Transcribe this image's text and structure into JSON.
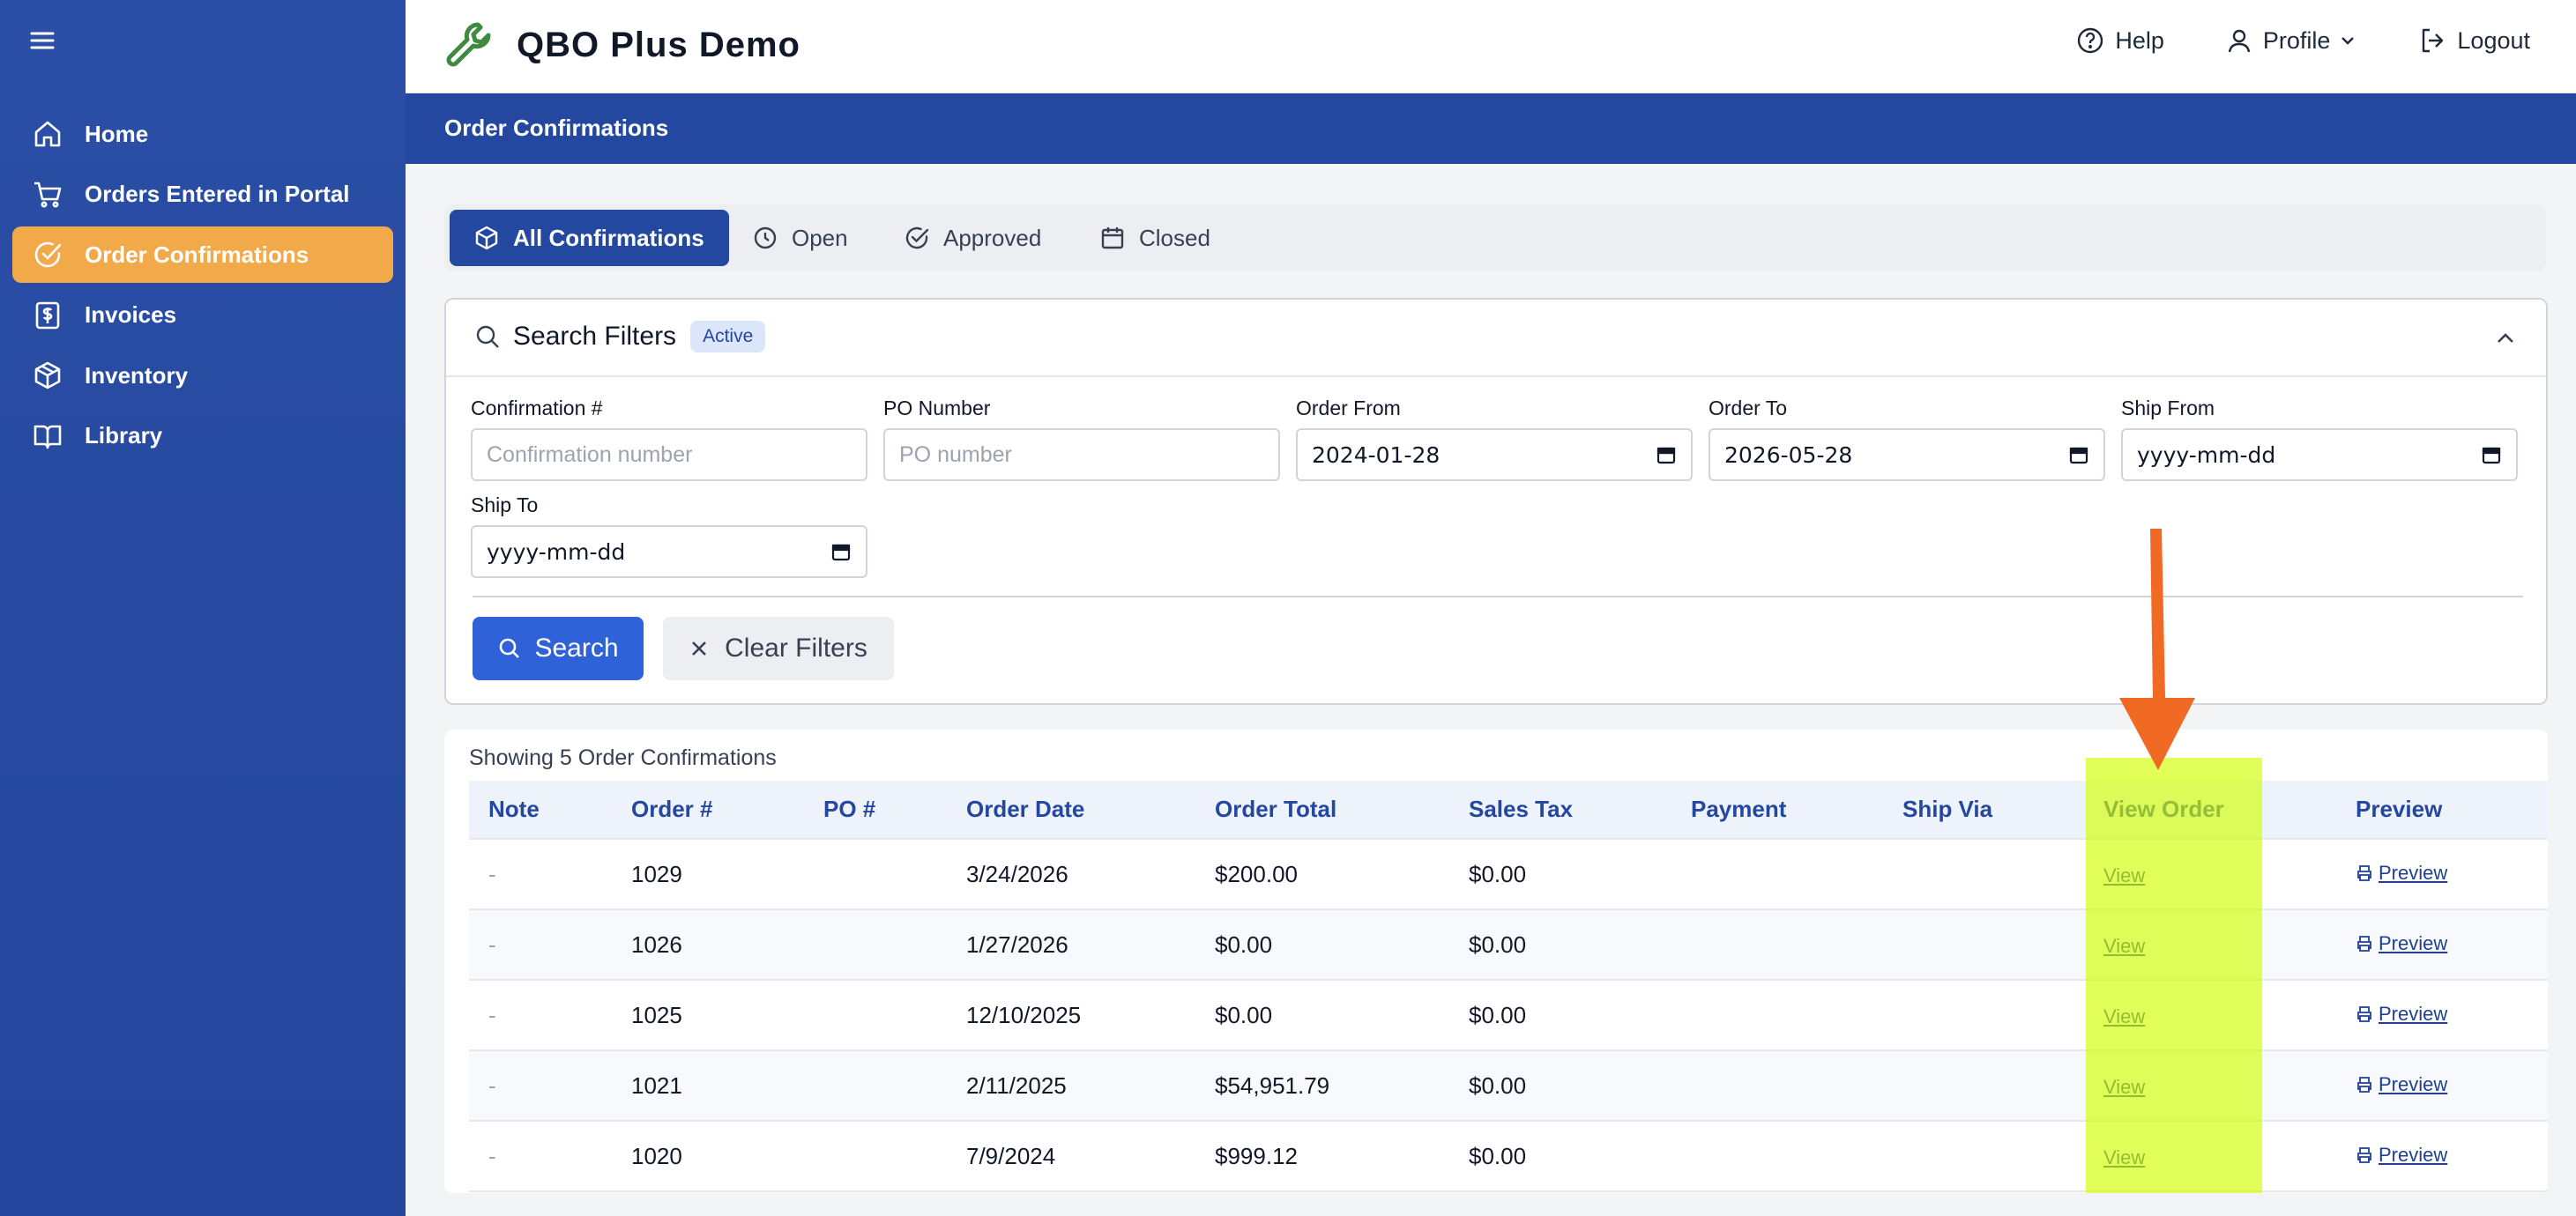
{
  "app": {
    "title": "QBO Plus Demo"
  },
  "sidebar": {
    "items": [
      {
        "label": "Home",
        "icon": "home-icon"
      },
      {
        "label": "Orders Entered in Portal",
        "icon": "cart-icon"
      },
      {
        "label": "Order Confirmations",
        "icon": "check-circle-icon",
        "active": true
      },
      {
        "label": "Invoices",
        "icon": "dollar-doc-icon"
      },
      {
        "label": "Inventory",
        "icon": "box-icon"
      },
      {
        "label": "Library",
        "icon": "book-icon"
      }
    ]
  },
  "topbar": {
    "help": "Help",
    "profile": "Profile",
    "logout": "Logout"
  },
  "page": {
    "title": "Order Confirmations"
  },
  "tabs": [
    {
      "label": "All Confirmations",
      "active": true
    },
    {
      "label": "Open"
    },
    {
      "label": "Approved"
    },
    {
      "label": "Closed"
    }
  ],
  "filters": {
    "title": "Search Filters",
    "badge": "Active",
    "fields": {
      "confirmation": {
        "label": "Confirmation #",
        "placeholder": "Confirmation number"
      },
      "po": {
        "label": "PO Number",
        "placeholder": "PO number"
      },
      "order_from": {
        "label": "Order From",
        "value": "2024-01-28"
      },
      "order_to": {
        "label": "Order To",
        "value": "2026-05-28"
      },
      "ship_from": {
        "label": "Ship From",
        "value": "yyyy-mm-dd"
      },
      "ship_to": {
        "label": "Ship To",
        "value": "yyyy-mm-dd"
      }
    },
    "search_label": "Search",
    "clear_label": "Clear Filters"
  },
  "results": {
    "count_text": "Showing 5 Order Confirmations",
    "columns": [
      "Note",
      "Order #",
      "PO #",
      "Order Date",
      "Order Total",
      "Sales Tax",
      "Payment",
      "Ship Via",
      "View Order",
      "Preview"
    ],
    "rows": [
      {
        "note": "-",
        "order": "1029",
        "po": "",
        "date": "3/24/2026",
        "total": "$200.00",
        "tax": "$0.00",
        "payment": "",
        "ship_via": "",
        "view": "View",
        "preview": "Preview"
      },
      {
        "note": "-",
        "order": "1026",
        "po": "",
        "date": "1/27/2026",
        "total": "$0.00",
        "tax": "$0.00",
        "payment": "",
        "ship_via": "",
        "view": "View",
        "preview": "Preview"
      },
      {
        "note": "-",
        "order": "1025",
        "po": "",
        "date": "12/10/2025",
        "total": "$0.00",
        "tax": "$0.00",
        "payment": "",
        "ship_via": "",
        "view": "View",
        "preview": "Preview"
      },
      {
        "note": "-",
        "order": "1021",
        "po": "",
        "date": "2/11/2025",
        "total": "$54,951.79",
        "tax": "$0.00",
        "payment": "",
        "ship_via": "",
        "view": "View",
        "preview": "Preview"
      },
      {
        "note": "-",
        "order": "1020",
        "po": "",
        "date": "7/9/2024",
        "total": "$999.12",
        "tax": "$0.00",
        "payment": "",
        "ship_via": "",
        "view": "View",
        "preview": "Preview"
      }
    ]
  },
  "colors": {
    "sidebar": "#2b4ea6",
    "active_nav": "#f1a94a",
    "primary": "#2447a0",
    "search_button": "#2f62d9",
    "highlight": "#d2ff00",
    "arrow": "#f06a24"
  }
}
